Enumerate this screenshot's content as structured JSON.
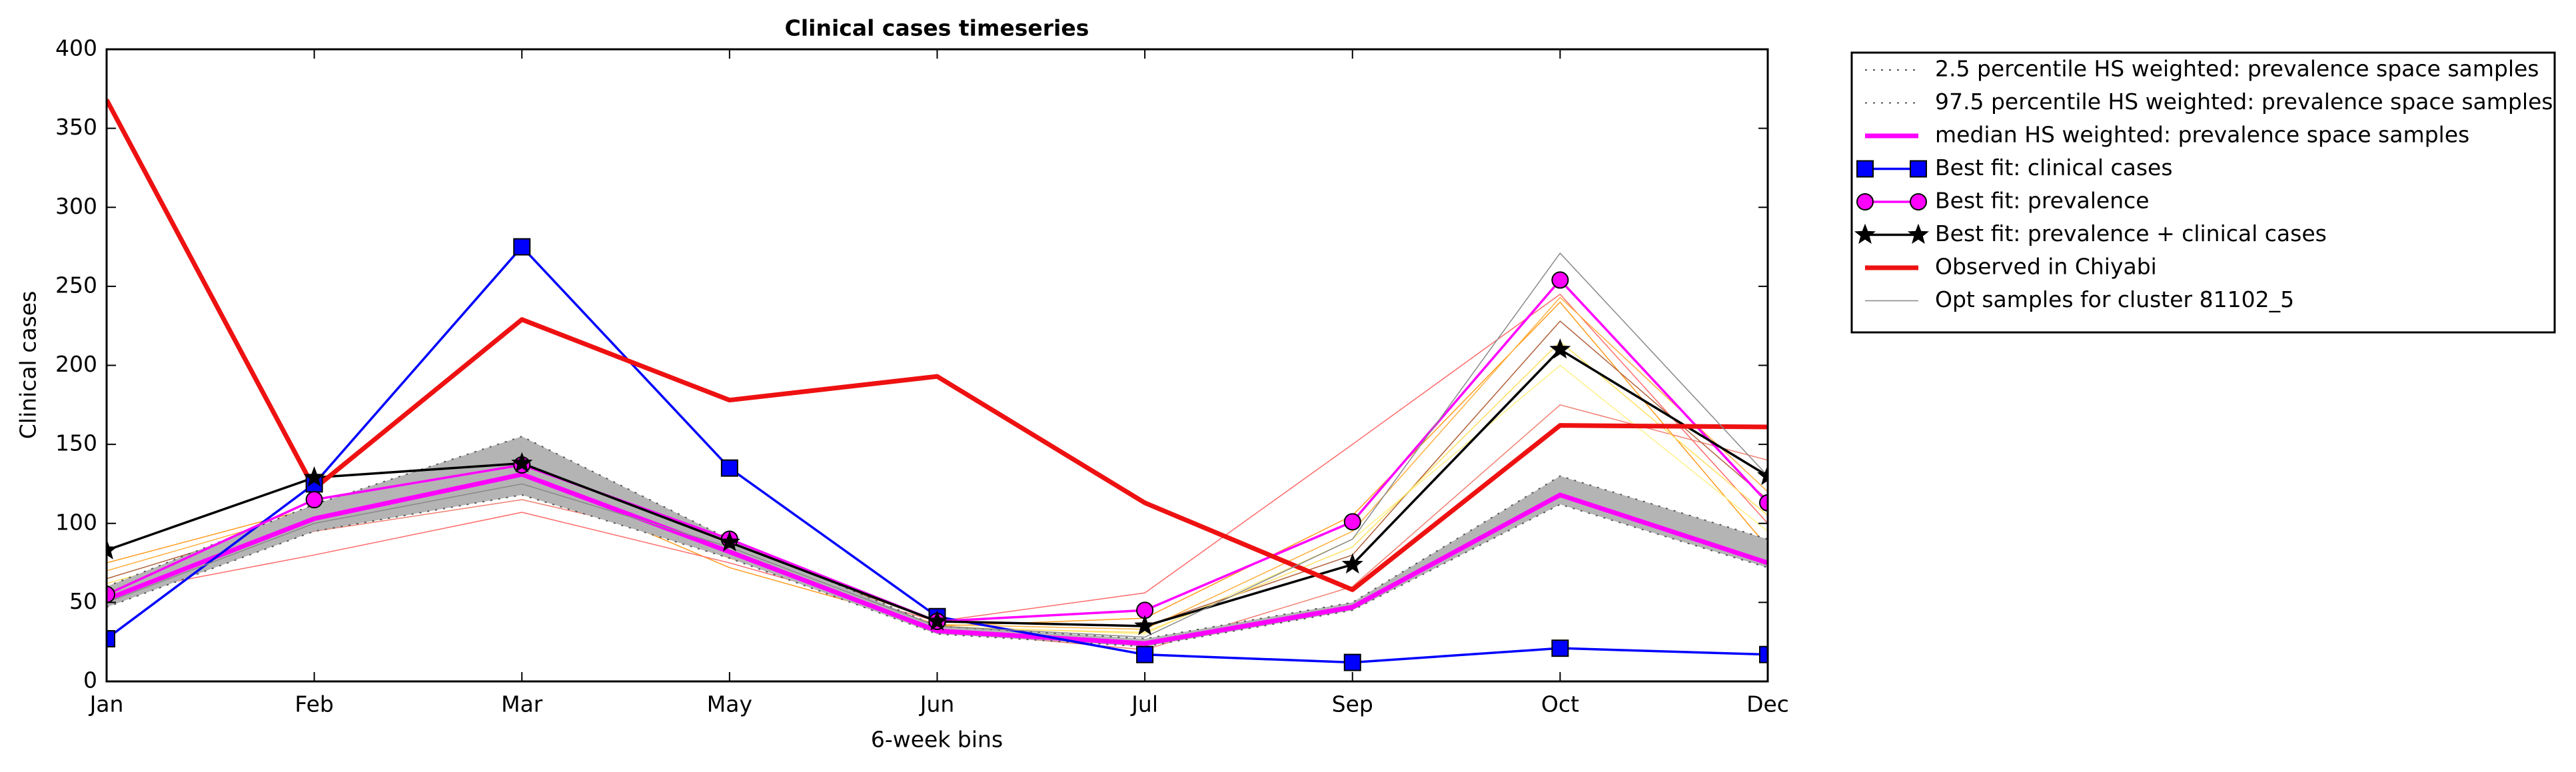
{
  "chart_data": {
    "type": "line",
    "title": "Clinical cases timeseries",
    "xlabel": "6-week bins",
    "ylabel": "Clinical cases",
    "categories": [
      "Jan",
      "Feb",
      "Mar",
      "May",
      "Jun",
      "Jul",
      "Sep",
      "Oct",
      "Dec"
    ],
    "ylim": [
      0,
      400
    ],
    "yticks": [
      0,
      50,
      100,
      150,
      200,
      250,
      300,
      350,
      400
    ],
    "shaded_band": {
      "color": "#b4b4b4"
    },
    "legend": "outside upper right",
    "series": [
      {
        "name": "2.5 percentile HS weighted: prevalence space samples",
        "color": "#555555",
        "linestyle": "dotted",
        "linewidth": 2,
        "values": [
          47,
          95,
          118,
          78,
          30,
          22,
          45,
          112,
          72
        ]
      },
      {
        "name": "97.5 percentile HS weighted: prevalence space samples",
        "color": "#555555",
        "linestyle": "dotted",
        "linewidth": 2,
        "values": [
          60,
          112,
          155,
          90,
          35,
          27,
          50,
          130,
          90
        ]
      },
      {
        "name": "median HS weighted: prevalence space samples",
        "color": "#ff00ff",
        "linestyle": "solid",
        "linewidth": 7,
        "values": [
          52,
          103,
          131,
          82,
          32,
          24,
          47,
          118,
          75
        ]
      },
      {
        "name": "Best fit: clinical cases",
        "color": "#0000ff",
        "marker": "square",
        "linestyle": "solid",
        "linewidth": 3.5,
        "values": [
          27,
          125,
          275,
          135,
          41,
          17,
          12,
          21,
          17
        ]
      },
      {
        "name": "Best fit: prevalence",
        "color": "#ff00ff",
        "marker": "circle",
        "linestyle": "solid",
        "linewidth": 3.5,
        "values": [
          55,
          115,
          137,
          90,
          38,
          45,
          101,
          254,
          113
        ]
      },
      {
        "name": "Best fit: prevalence + clinical cases",
        "color": "#000000",
        "marker": "star",
        "linestyle": "solid",
        "linewidth": 3.5,
        "values": [
          83,
          129,
          138,
          88,
          38,
          35,
          74,
          210,
          130
        ]
      },
      {
        "name": "Observed in Chiyabi",
        "color": "#ee1111",
        "linestyle": "solid",
        "linewidth": 7,
        "values": [
          368,
          122,
          229,
          178,
          193,
          113,
          58,
          162,
          161
        ]
      },
      {
        "name": "Opt samples for cluster 81102_5",
        "color": "#888888",
        "linestyle": "solid",
        "linewidth": 1.5,
        "values": [
          50,
          100,
          125,
          85,
          35,
          28,
          90,
          271,
          130
        ]
      }
    ],
    "other_samples": [
      {
        "color": "#ff9a1a",
        "values": [
          75,
          110,
          128,
          72,
          35,
          40,
          105,
          240,
          85
        ]
      },
      {
        "color": "#fff08a",
        "values": [
          60,
          100,
          120,
          80,
          35,
          30,
          90,
          200,
          95
        ]
      },
      {
        "color": "#ff6a6a",
        "values": [
          55,
          80,
          107,
          75,
          38,
          56,
          150,
          245,
          100
        ]
      },
      {
        "color": "#f08070",
        "values": [
          58,
          95,
          115,
          85,
          32,
          20,
          60,
          175,
          140
        ]
      },
      {
        "color": "#b0603a",
        "values": [
          65,
          105,
          120,
          85,
          38,
          35,
          80,
          228,
          115
        ]
      },
      {
        "color": "#ffb040",
        "values": [
          70,
          108,
          125,
          78,
          36,
          33,
          95,
          243,
          120
        ]
      },
      {
        "color": "#ffe060",
        "values": [
          62,
          98,
          122,
          82,
          34,
          31,
          85,
          215,
          105
        ]
      }
    ]
  }
}
